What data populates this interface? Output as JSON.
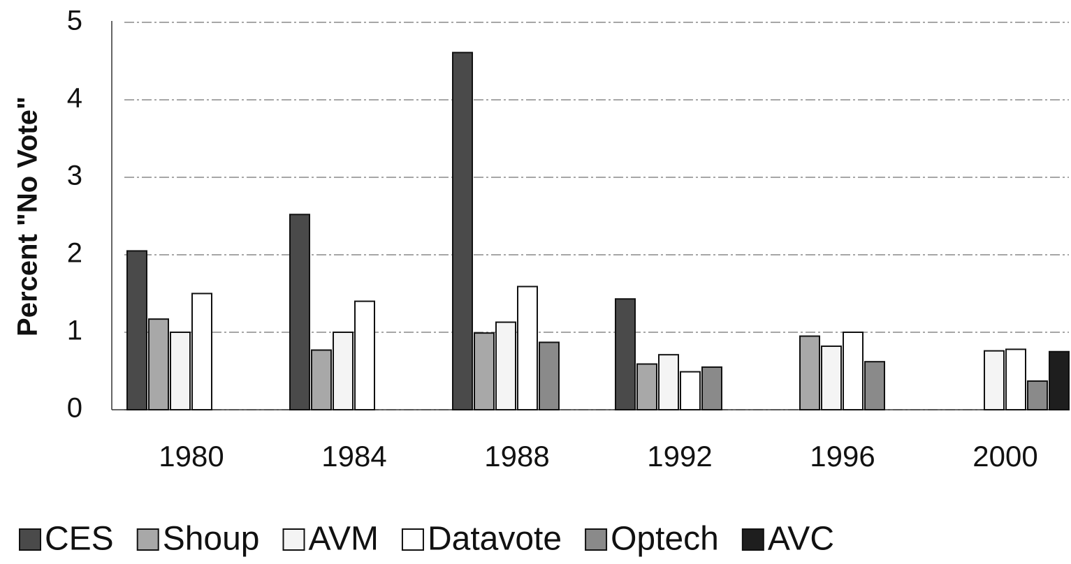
{
  "chart_data": {
    "type": "bar",
    "y_label": "Percent \"No Vote\"",
    "categories": [
      "1980",
      "1984",
      "1988",
      "1992",
      "1996",
      "2000"
    ],
    "series": [
      {
        "name": "CES",
        "color": "#4a4a4a",
        "values": [
          2.05,
          2.52,
          4.61,
          1.43,
          null,
          null
        ]
      },
      {
        "name": "Shoup",
        "color": "#a8a8a8",
        "values": [
          1.17,
          0.77,
          0.99,
          0.59,
          0.95,
          null
        ]
      },
      {
        "name": "AVM",
        "color": "#f4f4f4",
        "values": [
          1.0,
          1.0,
          1.13,
          0.71,
          0.82,
          0.76
        ]
      },
      {
        "name": "Datavote",
        "color": "#ffffff",
        "values": [
          1.5,
          1.4,
          1.59,
          0.49,
          1.0,
          0.78
        ]
      },
      {
        "name": "Optech",
        "color": "#8a8a8a",
        "values": [
          null,
          null,
          0.87,
          0.55,
          0.62,
          0.37
        ]
      },
      {
        "name": "AVC",
        "color": "#1e1e1e",
        "values": [
          null,
          null,
          null,
          null,
          null,
          0.75
        ]
      }
    ],
    "ylim": [
      0,
      5
    ],
    "yticks": [
      0,
      1,
      2,
      3,
      4,
      5
    ],
    "grid": true
  }
}
